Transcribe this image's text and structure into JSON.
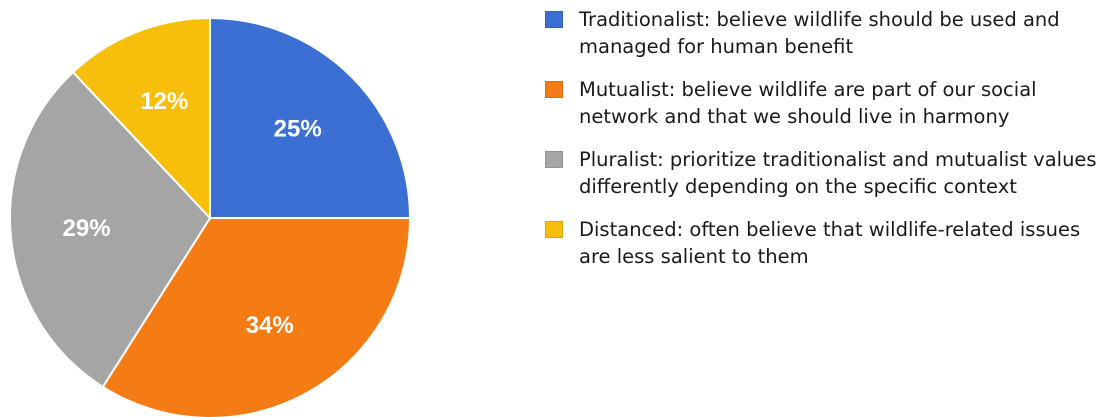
{
  "chart_data": {
    "type": "pie",
    "title": "",
    "start_angle_deg": 0,
    "direction": "clockwise",
    "slices": [
      {
        "label": "Traditionalist: believe wildlife should be used and managed for human benefit",
        "value": 25,
        "value_label": "25%",
        "color": "#3b6fd4"
      },
      {
        "label": "Mutualist: believe wildlife are part of our social network and that we should live in harmony",
        "value": 34,
        "value_label": "34%",
        "color": "#f57c15"
      },
      {
        "label": "Pluralist: prioritize traditionalist and mutualist values differently depending on the specific context",
        "value": 29,
        "value_label": "29%",
        "color": "#a5a5a5"
      },
      {
        "label": "Distanced: often believe that wildlife-related issues are less salient to them",
        "value": 12,
        "value_label": "12%",
        "color": "#f7bf0b"
      }
    ],
    "legend_position": "right"
  }
}
